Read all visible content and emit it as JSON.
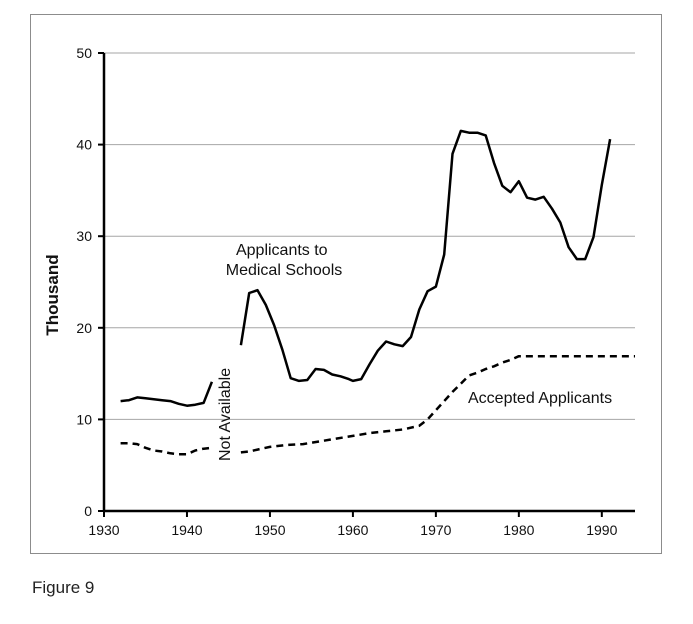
{
  "figure_caption": "Figure 9",
  "chart_data": {
    "type": "line",
    "title": "",
    "xlabel": "",
    "ylabel": "Thousand",
    "xlim": [
      1930,
      1994
    ],
    "ylim": [
      0,
      50
    ],
    "x_ticks": [
      1930,
      1940,
      1950,
      1960,
      1970,
      1980,
      1990
    ],
    "y_ticks": [
      0,
      10,
      20,
      30,
      40,
      50
    ],
    "grid": "horizontal",
    "legend": "none",
    "annotations": [
      {
        "id": "applicants",
        "lines": [
          "Applicants to",
          "Medical Schools"
        ]
      },
      {
        "id": "accepted",
        "lines": [
          "Accepted Applicants"
        ]
      },
      {
        "id": "gap",
        "lines": [
          "Not Available"
        ]
      }
    ],
    "series": [
      {
        "name": "Applicants to Medical Schools",
        "style": "solid",
        "segments": [
          [
            [
              1932,
              12.0
            ],
            [
              1933,
              12.1
            ],
            [
              1934,
              12.4
            ],
            [
              1935,
              12.3
            ],
            [
              1936,
              12.2
            ],
            [
              1937,
              12.1
            ],
            [
              1938,
              12.0
            ],
            [
              1939,
              11.7
            ],
            [
              1940,
              11.5
            ],
            [
              1941,
              11.6
            ],
            [
              1942,
              11.8
            ],
            [
              1943,
              14.1
            ]
          ],
          [
            [
              1946.5,
              18.1
            ],
            [
              1947.5,
              23.8
            ],
            [
              1948.5,
              24.1
            ],
            [
              1949.5,
              22.5
            ],
            [
              1950.5,
              20.3
            ],
            [
              1951.5,
              17.6
            ],
            [
              1952.5,
              14.5
            ],
            [
              1953.5,
              14.2
            ],
            [
              1954.5,
              14.3
            ],
            [
              1955.5,
              15.5
            ],
            [
              1956.5,
              15.4
            ],
            [
              1957.5,
              14.9
            ],
            [
              1958.5,
              14.7
            ],
            [
              1959.5,
              14.4
            ],
            [
              1960,
              14.2
            ],
            [
              1961,
              14.4
            ],
            [
              1962,
              16.0
            ],
            [
              1963,
              17.5
            ],
            [
              1964,
              18.5
            ],
            [
              1965,
              18.2
            ],
            [
              1966,
              18.0
            ],
            [
              1967,
              19.0
            ],
            [
              1968,
              22.0
            ],
            [
              1969,
              24.0
            ],
            [
              1970,
              24.5
            ],
            [
              1971,
              28.0
            ],
            [
              1972,
              39.0
            ],
            [
              1973,
              41.5
            ],
            [
              1974,
              41.3
            ],
            [
              1975,
              41.3
            ],
            [
              1976,
              41.0
            ],
            [
              1977,
              38.0
            ],
            [
              1978,
              35.5
            ],
            [
              1979,
              34.8
            ],
            [
              1980,
              36.0
            ],
            [
              1981,
              34.2
            ],
            [
              1982,
              34.0
            ],
            [
              1983,
              34.3
            ],
            [
              1984,
              33.0
            ],
            [
              1985,
              31.5
            ],
            [
              1986,
              28.8
            ],
            [
              1987,
              27.5
            ],
            [
              1988,
              27.5
            ],
            [
              1989,
              29.9
            ],
            [
              1990,
              35.6
            ],
            [
              1991,
              40.6
            ]
          ]
        ]
      },
      {
        "name": "Accepted Applicants",
        "style": "dashed",
        "segments": [
          [
            [
              1932,
              7.4
            ],
            [
              1933,
              7.4
            ],
            [
              1934,
              7.3
            ],
            [
              1935,
              6.9
            ],
            [
              1936,
              6.6
            ],
            [
              1937,
              6.5
            ],
            [
              1938,
              6.3
            ],
            [
              1939,
              6.2
            ],
            [
              1940,
              6.2
            ],
            [
              1941,
              6.6
            ],
            [
              1942,
              6.8
            ],
            [
              1943,
              6.9
            ]
          ],
          [
            [
              1946.5,
              6.4
            ],
            [
              1947.5,
              6.5
            ],
            [
              1948.5,
              6.7
            ],
            [
              1950,
              7.0
            ],
            [
              1952,
              7.2
            ],
            [
              1954,
              7.3
            ],
            [
              1956,
              7.6
            ],
            [
              1958,
              7.9
            ],
            [
              1960,
              8.2
            ],
            [
              1962,
              8.5
            ],
            [
              1964,
              8.7
            ],
            [
              1966,
              8.9
            ],
            [
              1968,
              9.3
            ],
            [
              1969,
              10.0
            ],
            [
              1970,
              11.0
            ],
            [
              1971,
              12.0
            ],
            [
              1972,
              13.0
            ],
            [
              1973,
              13.9
            ],
            [
              1974,
              14.8
            ],
            [
              1975,
              15.1
            ],
            [
              1976,
              15.5
            ],
            [
              1977,
              15.8
            ],
            [
              1978,
              16.2
            ],
            [
              1979,
              16.5
            ],
            [
              1980,
              16.9
            ],
            [
              1982,
              16.9
            ],
            [
              1984,
              16.9
            ],
            [
              1986,
              16.9
            ],
            [
              1988,
              16.9
            ],
            [
              1990,
              16.9
            ],
            [
              1992,
              16.9
            ],
            [
              1994,
              16.9
            ]
          ]
        ]
      }
    ]
  }
}
